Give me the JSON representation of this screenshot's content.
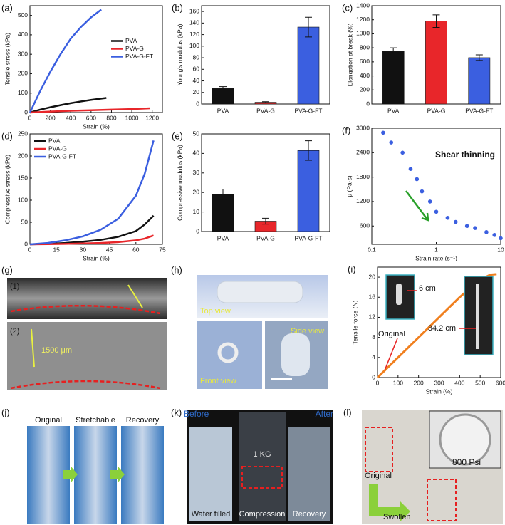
{
  "chart_data": [
    {
      "type": "line",
      "panel_label": "(a)",
      "xlabel": "Strain (%)",
      "ylabel": "Tensile stress (kPa)",
      "xlim": [
        0,
        1300
      ],
      "ylim": [
        0,
        550
      ],
      "xticks": [
        0,
        200,
        400,
        600,
        800,
        1000,
        1200
      ],
      "yticks": [
        0,
        100,
        200,
        300,
        400,
        500
      ],
      "legend": "center right",
      "series": [
        {
          "name": "PVA",
          "color": "#111111",
          "x": [
            0,
            100,
            200,
            300,
            400,
            500,
            600,
            700,
            750
          ],
          "values": [
            0,
            15,
            27,
            38,
            48,
            57,
            65,
            72,
            75
          ]
        },
        {
          "name": "PVA-G",
          "color": "#e8262a",
          "x": [
            0,
            200,
            400,
            600,
            800,
            1000,
            1180
          ],
          "values": [
            0,
            5,
            9,
            12,
            15,
            18,
            22
          ]
        },
        {
          "name": "PVA-G-FT",
          "color": "#3b5fe0",
          "x": [
            0,
            100,
            200,
            300,
            400,
            500,
            600,
            700
          ],
          "values": [
            0,
            110,
            210,
            300,
            380,
            440,
            490,
            530
          ]
        }
      ]
    },
    {
      "type": "bar",
      "panel_label": "(b)",
      "ylabel": "Young's modulus (kPa)",
      "categories": [
        "PVA",
        "PVA-G",
        "PVA-G-FT"
      ],
      "values": [
        27,
        3,
        133
      ],
      "errors": [
        3,
        1,
        17
      ],
      "colors": [
        "#111111",
        "#e8262a",
        "#3b5fe0"
      ],
      "ylim": [
        0,
        170
      ],
      "yticks": [
        0,
        20,
        40,
        60,
        80,
        100,
        120,
        140,
        160
      ]
    },
    {
      "type": "bar",
      "panel_label": "(c)",
      "ylabel": "Elongation at break (%)",
      "categories": [
        "PVA",
        "PVA-G",
        "PVA-G-FT"
      ],
      "values": [
        750,
        1180,
        660
      ],
      "errors": [
        50,
        90,
        40
      ],
      "colors": [
        "#111111",
        "#e8262a",
        "#3b5fe0"
      ],
      "ylim": [
        0,
        1400
      ],
      "yticks": [
        0,
        200,
        400,
        600,
        800,
        1000,
        1200,
        1400
      ]
    },
    {
      "type": "line",
      "panel_label": "(d)",
      "xlabel": "Strain (%)",
      "ylabel": "Compressive stress (kPa)",
      "xlim": [
        0,
        75
      ],
      "ylim": [
        0,
        250
      ],
      "xticks": [
        0,
        15,
        30,
        45,
        60,
        75
      ],
      "yticks": [
        0,
        50,
        100,
        150,
        200,
        250
      ],
      "legend": "upper left",
      "series": [
        {
          "name": "PVA",
          "color": "#111111",
          "x": [
            0,
            10,
            20,
            30,
            40,
            50,
            60,
            65,
            70
          ],
          "values": [
            0,
            1,
            3,
            6,
            10,
            17,
            30,
            45,
            65
          ]
        },
        {
          "name": "PVA-G",
          "color": "#e8262a",
          "x": [
            0,
            10,
            20,
            30,
            40,
            50,
            60,
            65,
            70
          ],
          "values": [
            0,
            0.5,
            1,
            2,
            3,
            5,
            9,
            13,
            20
          ]
        },
        {
          "name": "PVA-G-FT",
          "color": "#3b5fe0",
          "x": [
            0,
            10,
            20,
            30,
            40,
            50,
            60,
            65,
            70
          ],
          "values": [
            0,
            3,
            9,
            18,
            33,
            58,
            110,
            160,
            235
          ]
        }
      ]
    },
    {
      "type": "bar",
      "panel_label": "(e)",
      "ylabel": "Compressive modulus (kPa)",
      "categories": [
        "PVA",
        "PVA-G",
        "PVA-G-FT"
      ],
      "values": [
        19,
        5.3,
        41.5
      ],
      "errors": [
        2.7,
        1.5,
        5
      ],
      "colors": [
        "#111111",
        "#e8262a",
        "#3b5fe0"
      ],
      "ylim": [
        0,
        50
      ],
      "yticks": [
        0,
        10,
        20,
        30,
        40,
        50
      ]
    },
    {
      "type": "scatter",
      "panel_label": "(f)",
      "xlabel": "Strain rate (s⁻¹)",
      "ylabel": "μ (Pa·s)",
      "annotation": "Shear thinning",
      "xlog": true,
      "color": "#3b5fe0",
      "xlim": [
        0.1,
        10
      ],
      "ylim": [
        150,
        3000
      ],
      "xticks": [
        0.1,
        1,
        10
      ],
      "yticks": [
        600,
        1200,
        1800,
        2400,
        3000
      ],
      "x": [
        0.15,
        0.2,
        0.3,
        0.4,
        0.5,
        0.6,
        0.8,
        1,
        1.5,
        2,
        3,
        4,
        6,
        8,
        10
      ],
      "values": [
        2890,
        2650,
        2400,
        2000,
        1750,
        1450,
        1200,
        950,
        800,
        700,
        600,
        550,
        450,
        380,
        300
      ]
    },
    {
      "type": "line",
      "panel_label": "(i)",
      "xlabel": "Strain (%)",
      "ylabel": "Tensile force (N)",
      "xlim": [
        0,
        600
      ],
      "ylim": [
        0,
        22
      ],
      "xticks": [
        0,
        100,
        200,
        300,
        400,
        500,
        600
      ],
      "yticks": [
        0,
        4,
        8,
        12,
        16,
        20
      ],
      "annotations": [
        "6 cm",
        "Original",
        "34.2 cm"
      ],
      "series": [
        {
          "color": "#f07f1e",
          "x": [
            0,
            50,
            100,
            200,
            300,
            400,
            500,
            550,
            580
          ],
          "values": [
            0,
            2,
            4,
            8,
            12,
            16,
            19.5,
            20.5,
            20.6
          ]
        }
      ]
    }
  ],
  "photos": [
    {
      "label": "(g)",
      "texts": [
        "(1)",
        "(2)",
        "1500 μm"
      ]
    },
    {
      "label": "(h)",
      "texts": [
        "Top view",
        "Front view",
        "Side view"
      ]
    },
    {
      "label": "(j)",
      "texts": [
        "Original",
        "Stretchable",
        "Recovery"
      ]
    },
    {
      "label": "(k)",
      "texts": [
        "Before",
        "After",
        "1 KG",
        "Water filled",
        "Compression",
        "Recovery"
      ]
    },
    {
      "label": "(l)",
      "texts": [
        "800 Psi",
        "Original",
        "Swollen"
      ]
    }
  ]
}
